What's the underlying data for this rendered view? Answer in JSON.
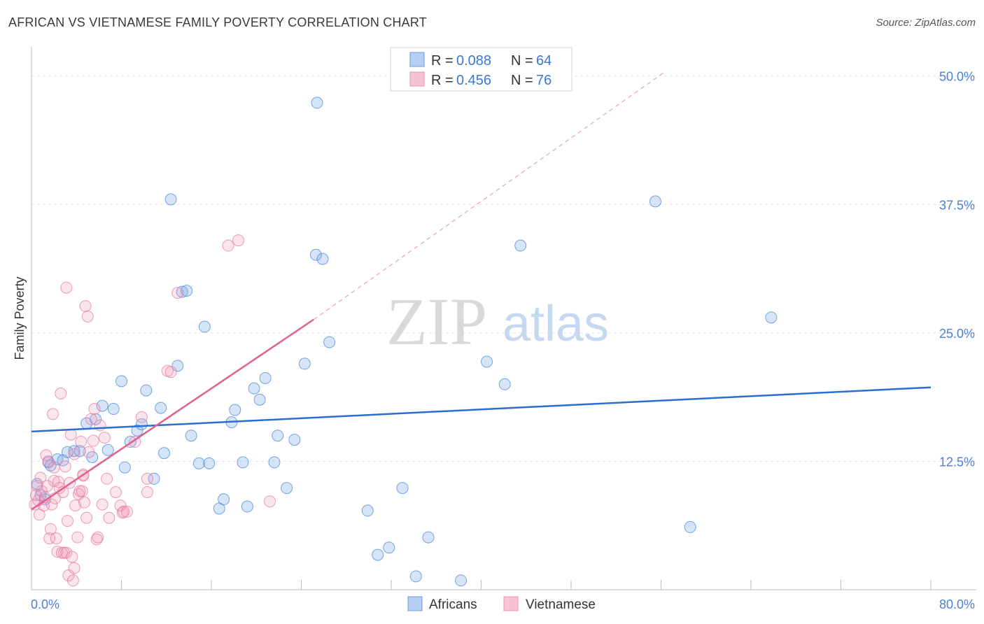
{
  "header": {
    "title": "AFRICAN VS VIETNAMESE FAMILY POVERTY CORRELATION CHART",
    "source": "Source: ZipAtlas.com"
  },
  "watermark": {
    "zip": "ZIP",
    "atlas": "atlas"
  },
  "colors": {
    "africans": "#4a87d8",
    "africans_fill": "rgba(120,165,230,0.30)",
    "vietnamese": "#e87aa0",
    "vietnamese_fill": "rgba(240,150,185,0.25)",
    "grid": "#e3e3e3",
    "axis": "#bbbbbb"
  },
  "legend": {
    "rows": [
      {
        "r_label": "R =",
        "r_value": "0.088",
        "n_label": "N =",
        "n_value": "64"
      },
      {
        "r_label": "R =",
        "r_value": "0.456",
        "n_label": "N =",
        "n_value": "76"
      }
    ]
  },
  "bottom_legend": [
    "Africans",
    "Vietnamese"
  ],
  "chart_data": {
    "type": "scatter",
    "title": "AFRICAN VS VIETNAMESE FAMILY POVERTY CORRELATION CHART",
    "xlabel": "",
    "ylabel": "Family Poverty",
    "xlim": [
      0,
      80
    ],
    "ylim": [
      0,
      52.5
    ],
    "x_tick_labels": [
      "0.0%",
      "80.0%"
    ],
    "y_ticks": [
      12.5,
      25.0,
      37.5,
      50.0
    ],
    "y_tick_labels": [
      "12.5%",
      "25.0%",
      "37.5%",
      "50.0%"
    ],
    "grid": true,
    "legend_position": "top-center",
    "series": [
      {
        "name": "Africans",
        "r": 0.088,
        "n": 64,
        "trend": {
          "x": [
            0,
            80
          ],
          "y": [
            15.4,
            19.7
          ],
          "style": "solid"
        },
        "points": [
          [
            0.5,
            10.3
          ],
          [
            0.8,
            9.2
          ],
          [
            1.2,
            8.8
          ],
          [
            1.5,
            12.4
          ],
          [
            1.7,
            12.1
          ],
          [
            2.3,
            12.7
          ],
          [
            2.8,
            12.6
          ],
          [
            3.2,
            13.4
          ],
          [
            3.8,
            13.5
          ],
          [
            4.3,
            13.5
          ],
          [
            4.9,
            16.2
          ],
          [
            5.4,
            12.9
          ],
          [
            5.7,
            16.6
          ],
          [
            6.3,
            17.9
          ],
          [
            6.8,
            13.6
          ],
          [
            7.3,
            17.6
          ],
          [
            8.0,
            20.3
          ],
          [
            8.3,
            11.9
          ],
          [
            8.8,
            14.4
          ],
          [
            9.4,
            15.5
          ],
          [
            9.8,
            16.1
          ],
          [
            10.2,
            19.4
          ],
          [
            10.9,
            10.8
          ],
          [
            11.5,
            17.7
          ],
          [
            11.8,
            13.3
          ],
          [
            12.4,
            38.0
          ],
          [
            13.0,
            21.8
          ],
          [
            13.4,
            29.0
          ],
          [
            13.8,
            29.1
          ],
          [
            14.2,
            15.0
          ],
          [
            14.9,
            12.3
          ],
          [
            15.4,
            25.6
          ],
          [
            15.8,
            12.3
          ],
          [
            16.7,
            7.9
          ],
          [
            17.1,
            8.8
          ],
          [
            17.8,
            16.3
          ],
          [
            18.1,
            17.5
          ],
          [
            18.8,
            12.4
          ],
          [
            19.2,
            8.1
          ],
          [
            19.8,
            19.6
          ],
          [
            20.3,
            18.5
          ],
          [
            20.8,
            20.6
          ],
          [
            21.6,
            12.4
          ],
          [
            21.9,
            15.0
          ],
          [
            22.7,
            9.9
          ],
          [
            23.4,
            14.6
          ],
          [
            24.3,
            22.0
          ],
          [
            25.3,
            32.6
          ],
          [
            25.4,
            47.4
          ],
          [
            25.9,
            32.2
          ],
          [
            26.5,
            24.1
          ],
          [
            29.9,
            7.7
          ],
          [
            30.8,
            3.4
          ],
          [
            31.8,
            4.1
          ],
          [
            33.0,
            9.9
          ],
          [
            34.2,
            1.3
          ],
          [
            35.3,
            5.1
          ],
          [
            38.2,
            0.9
          ],
          [
            40.5,
            22.2
          ],
          [
            42.1,
            20.0
          ],
          [
            43.5,
            33.5
          ],
          [
            55.5,
            37.8
          ],
          [
            58.6,
            6.1
          ],
          [
            65.8,
            26.5
          ]
        ]
      },
      {
        "name": "Vietnamese",
        "r": 0.456,
        "n": 76,
        "trend": {
          "x": [
            0,
            25.1
          ],
          "y": [
            7.8,
            26.3
          ],
          "style": "solid",
          "extended": {
            "x": [
              25.1,
              56.2
            ],
            "y": [
              26.3,
              50.3
            ],
            "style": "dashed"
          }
        },
        "points": [
          [
            0.3,
            8.3
          ],
          [
            0.4,
            9.2
          ],
          [
            0.5,
            10.1
          ],
          [
            0.6,
            8.7
          ],
          [
            0.7,
            7.3
          ],
          [
            0.8,
            10.9
          ],
          [
            0.9,
            9.6
          ],
          [
            1.1,
            8.2
          ],
          [
            1.2,
            9.0
          ],
          [
            1.3,
            13.1
          ],
          [
            1.4,
            10.1
          ],
          [
            1.5,
            12.5
          ],
          [
            1.6,
            5.0
          ],
          [
            1.7,
            5.9
          ],
          [
            1.8,
            8.3
          ],
          [
            1.9,
            17.1
          ],
          [
            2.0,
            11.9
          ],
          [
            2.1,
            8.9
          ],
          [
            2.2,
            5.0
          ],
          [
            2.3,
            3.7
          ],
          [
            2.4,
            10.5
          ],
          [
            2.5,
            9.9
          ],
          [
            2.6,
            19.1
          ],
          [
            2.7,
            3.6
          ],
          [
            2.8,
            9.5
          ],
          [
            2.9,
            3.6
          ],
          [
            3.0,
            12.0
          ],
          [
            3.1,
            3.6
          ],
          [
            3.2,
            6.7
          ],
          [
            3.3,
            1.4
          ],
          [
            3.4,
            10.4
          ],
          [
            3.5,
            15.1
          ],
          [
            3.6,
            3.2
          ],
          [
            3.7,
            0.9
          ],
          [
            3.8,
            2.1
          ],
          [
            3.9,
            8.2
          ],
          [
            4.1,
            5.1
          ],
          [
            4.2,
            9.3
          ],
          [
            4.3,
            9.6
          ],
          [
            4.4,
            14.4
          ],
          [
            4.5,
            9.6
          ],
          [
            4.6,
            11.2
          ],
          [
            4.7,
            8.5
          ],
          [
            4.8,
            27.6
          ],
          [
            4.9,
            7.0
          ],
          [
            5.0,
            26.6
          ],
          [
            5.1,
            13.4
          ],
          [
            5.3,
            16.6
          ],
          [
            5.5,
            14.5
          ],
          [
            5.6,
            17.6
          ],
          [
            5.8,
            4.9
          ],
          [
            5.9,
            5.1
          ],
          [
            6.1,
            16.0
          ],
          [
            6.3,
            8.3
          ],
          [
            6.5,
            14.8
          ],
          [
            6.7,
            10.8
          ],
          [
            6.9,
            7.0
          ],
          [
            7.5,
            9.5
          ],
          [
            7.9,
            8.2
          ],
          [
            8.1,
            7.5
          ],
          [
            8.2,
            7.6
          ],
          [
            8.5,
            7.6
          ],
          [
            9.2,
            14.4
          ],
          [
            9.8,
            16.8
          ],
          [
            10.3,
            9.5
          ],
          [
            10.3,
            10.8
          ],
          [
            12.1,
            21.3
          ],
          [
            12.4,
            21.2
          ],
          [
            17.5,
            33.5
          ],
          [
            18.4,
            34.0
          ],
          [
            21.2,
            8.6
          ],
          [
            13.0,
            28.9
          ],
          [
            3.1,
            29.4
          ],
          [
            4.6,
            11.1
          ],
          [
            2.0,
            10.6
          ],
          [
            3.8,
            13.2
          ]
        ]
      }
    ]
  }
}
